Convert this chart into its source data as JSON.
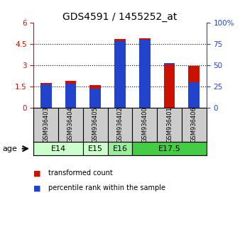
{
  "title": "GDS4591 / 1455252_at",
  "samples": [
    "GSM936403",
    "GSM936404",
    "GSM936405",
    "GSM936402",
    "GSM936400",
    "GSM936401",
    "GSM936406"
  ],
  "transformed_count": [
    1.75,
    1.9,
    1.6,
    4.85,
    4.9,
    3.05,
    2.95
  ],
  "percentile_rank": [
    27,
    28,
    22,
    78,
    80,
    52,
    30
  ],
  "age_groups": [
    {
      "label": "E14",
      "start": 0,
      "end": 2,
      "color": "#ccffcc"
    },
    {
      "label": "E15",
      "start": 2,
      "end": 3,
      "color": "#ccffcc"
    },
    {
      "label": "E16",
      "start": 3,
      "end": 4,
      "color": "#99ee99"
    },
    {
      "label": "E17.5",
      "start": 4,
      "end": 7,
      "color": "#44cc44"
    }
  ],
  "ylim_left": [
    0,
    6
  ],
  "ylim_right": [
    0,
    100
  ],
  "yticks_left": [
    0,
    1.5,
    3.0,
    4.5,
    6
  ],
  "ytick_labels_left": [
    "0",
    "1.5",
    "3",
    "4.5",
    "6"
  ],
  "yticks_right": [
    0,
    25,
    50,
    75,
    100
  ],
  "ytick_labels_right": [
    "0",
    "25",
    "50",
    "75",
    "100%"
  ],
  "bar_color_red": "#cc1100",
  "bar_color_blue": "#2244cc",
  "sample_box_color": "#cccccc",
  "legend_red_label": "transformed count",
  "legend_blue_label": "percentile rank within the sample",
  "age_label": "age",
  "bar_width": 0.45
}
